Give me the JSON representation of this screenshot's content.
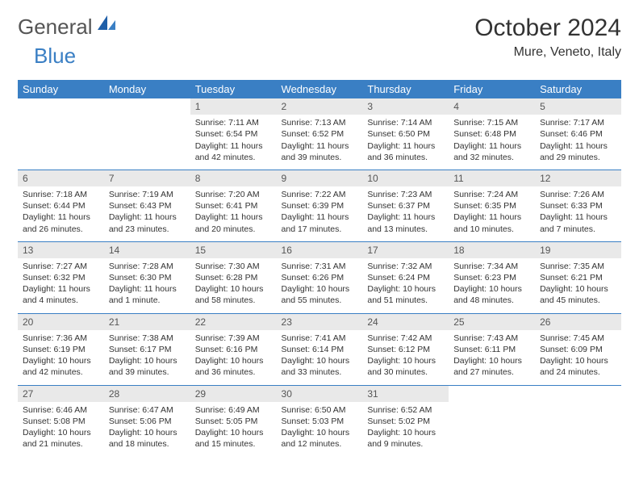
{
  "logo": {
    "general": "General",
    "blue": "Blue"
  },
  "title": "October 2024",
  "location": "Mure, Veneto, Italy",
  "colors": {
    "header_bg": "#3a7fc4",
    "header_fg": "#ffffff",
    "daynum_bg": "#e9e9e9",
    "text": "#333333",
    "rule": "#3a7fc4"
  },
  "weekdays": [
    "Sunday",
    "Monday",
    "Tuesday",
    "Wednesday",
    "Thursday",
    "Friday",
    "Saturday"
  ],
  "weeks": [
    [
      {
        "n": "",
        "lines": [
          "",
          "",
          ""
        ]
      },
      {
        "n": "",
        "lines": [
          "",
          "",
          ""
        ]
      },
      {
        "n": "1",
        "lines": [
          "Sunrise: 7:11 AM",
          "Sunset: 6:54 PM",
          "Daylight: 11 hours and 42 minutes."
        ]
      },
      {
        "n": "2",
        "lines": [
          "Sunrise: 7:13 AM",
          "Sunset: 6:52 PM",
          "Daylight: 11 hours and 39 minutes."
        ]
      },
      {
        "n": "3",
        "lines": [
          "Sunrise: 7:14 AM",
          "Sunset: 6:50 PM",
          "Daylight: 11 hours and 36 minutes."
        ]
      },
      {
        "n": "4",
        "lines": [
          "Sunrise: 7:15 AM",
          "Sunset: 6:48 PM",
          "Daylight: 11 hours and 32 minutes."
        ]
      },
      {
        "n": "5",
        "lines": [
          "Sunrise: 7:17 AM",
          "Sunset: 6:46 PM",
          "Daylight: 11 hours and 29 minutes."
        ]
      }
    ],
    [
      {
        "n": "6",
        "lines": [
          "Sunrise: 7:18 AM",
          "Sunset: 6:44 PM",
          "Daylight: 11 hours and 26 minutes."
        ]
      },
      {
        "n": "7",
        "lines": [
          "Sunrise: 7:19 AM",
          "Sunset: 6:43 PM",
          "Daylight: 11 hours and 23 minutes."
        ]
      },
      {
        "n": "8",
        "lines": [
          "Sunrise: 7:20 AM",
          "Sunset: 6:41 PM",
          "Daylight: 11 hours and 20 minutes."
        ]
      },
      {
        "n": "9",
        "lines": [
          "Sunrise: 7:22 AM",
          "Sunset: 6:39 PM",
          "Daylight: 11 hours and 17 minutes."
        ]
      },
      {
        "n": "10",
        "lines": [
          "Sunrise: 7:23 AM",
          "Sunset: 6:37 PM",
          "Daylight: 11 hours and 13 minutes."
        ]
      },
      {
        "n": "11",
        "lines": [
          "Sunrise: 7:24 AM",
          "Sunset: 6:35 PM",
          "Daylight: 11 hours and 10 minutes."
        ]
      },
      {
        "n": "12",
        "lines": [
          "Sunrise: 7:26 AM",
          "Sunset: 6:33 PM",
          "Daylight: 11 hours and 7 minutes."
        ]
      }
    ],
    [
      {
        "n": "13",
        "lines": [
          "Sunrise: 7:27 AM",
          "Sunset: 6:32 PM",
          "Daylight: 11 hours and 4 minutes."
        ]
      },
      {
        "n": "14",
        "lines": [
          "Sunrise: 7:28 AM",
          "Sunset: 6:30 PM",
          "Daylight: 11 hours and 1 minute."
        ]
      },
      {
        "n": "15",
        "lines": [
          "Sunrise: 7:30 AM",
          "Sunset: 6:28 PM",
          "Daylight: 10 hours and 58 minutes."
        ]
      },
      {
        "n": "16",
        "lines": [
          "Sunrise: 7:31 AM",
          "Sunset: 6:26 PM",
          "Daylight: 10 hours and 55 minutes."
        ]
      },
      {
        "n": "17",
        "lines": [
          "Sunrise: 7:32 AM",
          "Sunset: 6:24 PM",
          "Daylight: 10 hours and 51 minutes."
        ]
      },
      {
        "n": "18",
        "lines": [
          "Sunrise: 7:34 AM",
          "Sunset: 6:23 PM",
          "Daylight: 10 hours and 48 minutes."
        ]
      },
      {
        "n": "19",
        "lines": [
          "Sunrise: 7:35 AM",
          "Sunset: 6:21 PM",
          "Daylight: 10 hours and 45 minutes."
        ]
      }
    ],
    [
      {
        "n": "20",
        "lines": [
          "Sunrise: 7:36 AM",
          "Sunset: 6:19 PM",
          "Daylight: 10 hours and 42 minutes."
        ]
      },
      {
        "n": "21",
        "lines": [
          "Sunrise: 7:38 AM",
          "Sunset: 6:17 PM",
          "Daylight: 10 hours and 39 minutes."
        ]
      },
      {
        "n": "22",
        "lines": [
          "Sunrise: 7:39 AM",
          "Sunset: 6:16 PM",
          "Daylight: 10 hours and 36 minutes."
        ]
      },
      {
        "n": "23",
        "lines": [
          "Sunrise: 7:41 AM",
          "Sunset: 6:14 PM",
          "Daylight: 10 hours and 33 minutes."
        ]
      },
      {
        "n": "24",
        "lines": [
          "Sunrise: 7:42 AM",
          "Sunset: 6:12 PM",
          "Daylight: 10 hours and 30 minutes."
        ]
      },
      {
        "n": "25",
        "lines": [
          "Sunrise: 7:43 AM",
          "Sunset: 6:11 PM",
          "Daylight: 10 hours and 27 minutes."
        ]
      },
      {
        "n": "26",
        "lines": [
          "Sunrise: 7:45 AM",
          "Sunset: 6:09 PM",
          "Daylight: 10 hours and 24 minutes."
        ]
      }
    ],
    [
      {
        "n": "27",
        "lines": [
          "Sunrise: 6:46 AM",
          "Sunset: 5:08 PM",
          "Daylight: 10 hours and 21 minutes."
        ]
      },
      {
        "n": "28",
        "lines": [
          "Sunrise: 6:47 AM",
          "Sunset: 5:06 PM",
          "Daylight: 10 hours and 18 minutes."
        ]
      },
      {
        "n": "29",
        "lines": [
          "Sunrise: 6:49 AM",
          "Sunset: 5:05 PM",
          "Daylight: 10 hours and 15 minutes."
        ]
      },
      {
        "n": "30",
        "lines": [
          "Sunrise: 6:50 AM",
          "Sunset: 5:03 PM",
          "Daylight: 10 hours and 12 minutes."
        ]
      },
      {
        "n": "31",
        "lines": [
          "Sunrise: 6:52 AM",
          "Sunset: 5:02 PM",
          "Daylight: 10 hours and 9 minutes."
        ]
      },
      {
        "n": "",
        "lines": [
          "",
          "",
          ""
        ]
      },
      {
        "n": "",
        "lines": [
          "",
          "",
          ""
        ]
      }
    ]
  ]
}
